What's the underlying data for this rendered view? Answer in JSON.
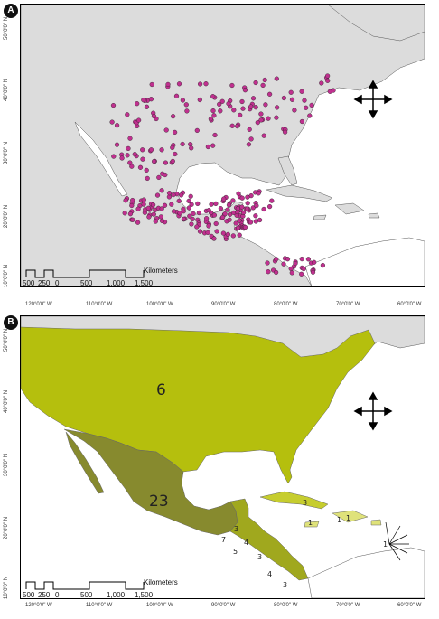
{
  "panels": [
    {
      "id": "A",
      "badge": "A"
    },
    {
      "id": "B",
      "badge": "B"
    }
  ],
  "longitude_ticks": [
    "120°0'0\" W",
    "110°0'0\" W",
    "100°0'0\" W",
    "90°0'0\" W",
    "80°0'0\" W",
    "70°0'0\" W",
    "60°0'0\" W"
  ],
  "latitude_ticks": [
    "50°0'0\" N",
    "40°0'0\" N",
    "30°0'0\" N",
    "20°0'0\" N",
    "10°0'0\" N"
  ],
  "scale_bar": {
    "unit": "Kilometers",
    "labels": [
      "500",
      "250",
      "0",
      "500",
      "1,000",
      "1,500"
    ]
  },
  "region_counts": {
    "usa": "6",
    "mexico": "23",
    "cuba": "3",
    "hispaniola": "1",
    "puerto_rico": "1",
    "jamaica": "1",
    "lesser_antilles": "1",
    "belize": "3",
    "guatemala": "7",
    "honduras": "4",
    "el_salvador": "5",
    "nicaragua": "3",
    "costa_rica": "4",
    "panama": "3"
  },
  "colors": {
    "land_grey": "#dcdcdc",
    "occurrence_fill": "#c0308f",
    "usa_fill": "#b5bf0d",
    "mexico_fill": "#878a2e",
    "caribbean_fill": "#c6cd2e",
    "central_fill": "#a0a81e",
    "light_fill": "#dfe27a"
  }
}
